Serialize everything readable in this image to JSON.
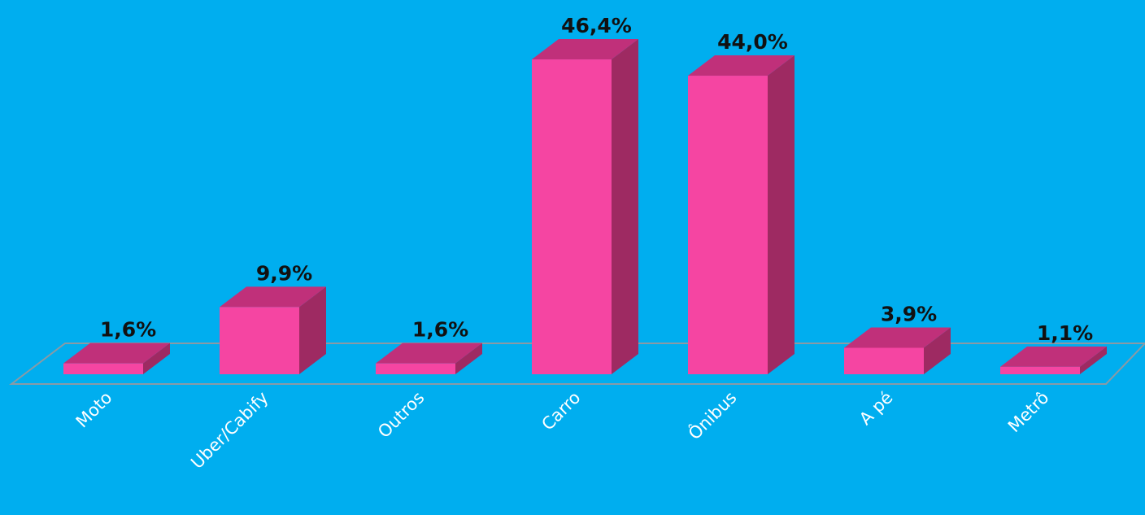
{
  "chart_data": {
    "type": "bar3d",
    "categories": [
      "Moto",
      "Uber/Cabify",
      "Outros",
      "Carro",
      "Ônibus",
      "A pé",
      "Metrô"
    ],
    "values": [
      1.6,
      9.9,
      1.6,
      46.4,
      44.0,
      3.9,
      1.1
    ],
    "value_labels": [
      "1,6%",
      "9,9%",
      "1,6%",
      "46,4%",
      "44,0%",
      "3,9%",
      "1,1%"
    ],
    "color": "#f545a2"
  }
}
